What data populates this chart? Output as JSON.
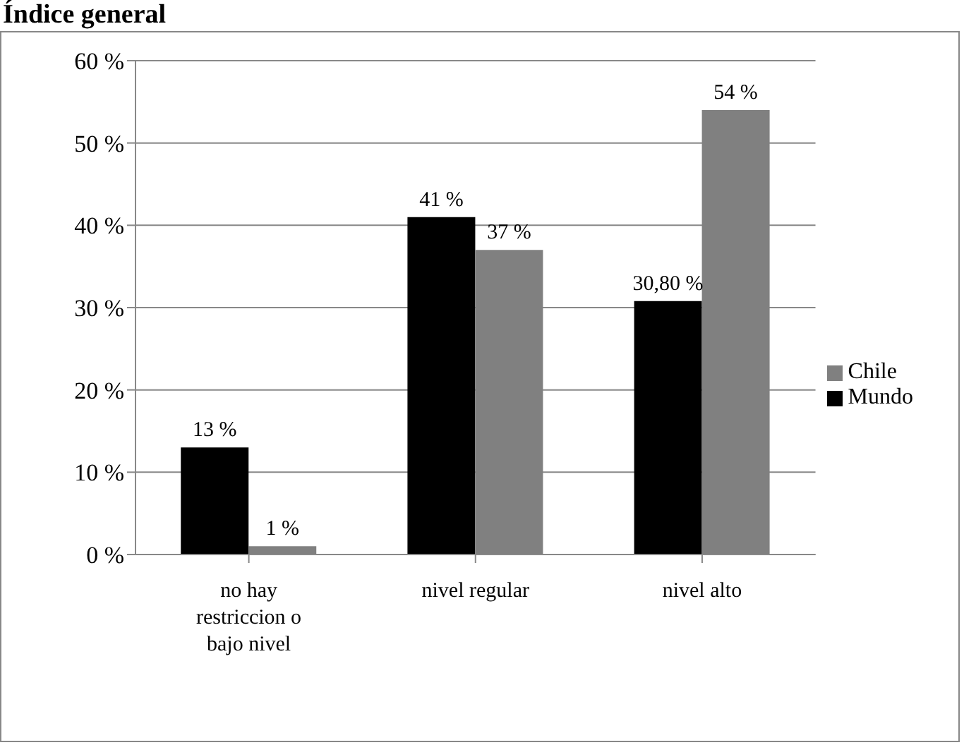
{
  "chart_data": {
    "type": "bar",
    "title": "Índice general",
    "categories": [
      "no hay restriccion o bajo nivel",
      "nivel regular",
      "nivel alto"
    ],
    "series": [
      {
        "name": "Mundo",
        "color": "#000000",
        "values": [
          13,
          41,
          30.8
        ],
        "value_labels": [
          "13 %",
          "41 %",
          "30,80 %"
        ]
      },
      {
        "name": "Chile",
        "color": "#808080",
        "values": [
          1,
          37,
          54
        ],
        "value_labels": [
          "1 %",
          "37 %",
          "54 %"
        ]
      }
    ],
    "ylim": [
      0,
      60
    ],
    "yticks": [
      {
        "value": 0,
        "label": "0 %"
      },
      {
        "value": 10,
        "label": "10 %"
      },
      {
        "value": 20,
        "label": "20 %"
      },
      {
        "value": 30,
        "label": "30 %"
      },
      {
        "value": 40,
        "label": "40 %"
      },
      {
        "value": 50,
        "label": "50 %"
      },
      {
        "value": 60,
        "label": "60 %"
      }
    ],
    "grid": "y",
    "legend": "right"
  }
}
